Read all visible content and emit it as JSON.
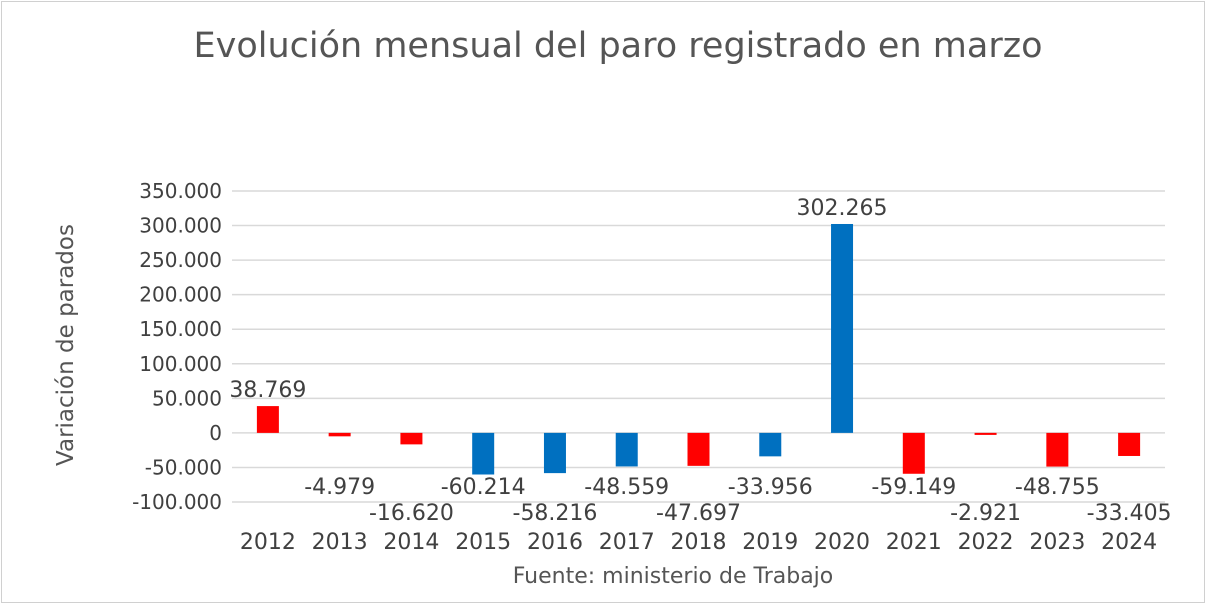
{
  "chart_data": {
    "type": "bar",
    "title": "Evolución mensual del paro registrado en marzo",
    "xlabel": "",
    "ylabel": "Variación de parados",
    "source": "Fuente: ministerio de Trabajo",
    "categories": [
      "2012",
      "2013",
      "2014",
      "2015",
      "2016",
      "2017",
      "2018",
      "2019",
      "2020",
      "2021",
      "2022",
      "2023",
      "2024"
    ],
    "values": [
      38769,
      -4979,
      -16620,
      -60214,
      -58216,
      -48559,
      -47697,
      -33956,
      302265,
      -59149,
      -2921,
      -48755,
      -33405
    ],
    "data_labels": [
      "38.769",
      "-4.979",
      "-16.620",
      "-60.214",
      "-58.216",
      "-48.559",
      "-47.697",
      "-33.956",
      "302.265",
      "-59.149",
      "-2.921",
      "-48.755",
      "-33.405"
    ],
    "bar_colors": [
      "#ff0000",
      "#ff0000",
      "#ff0000",
      "#0070c0",
      "#0070c0",
      "#0070c0",
      "#ff0000",
      "#0070c0",
      "#0070c0",
      "#ff0000",
      "#ff0000",
      "#ff0000",
      "#ff0000"
    ],
    "ylim": [
      -100000,
      350000
    ],
    "yticks": [
      350000,
      300000,
      250000,
      200000,
      150000,
      100000,
      50000,
      0,
      -50000,
      -100000
    ],
    "ytick_labels": [
      "350.000",
      "300.000",
      "250.000",
      "200.000",
      "150.000",
      "100.000",
      "50.000",
      "0",
      "-50.000",
      "-100.000"
    ],
    "grid": true,
    "legend": "none"
  }
}
